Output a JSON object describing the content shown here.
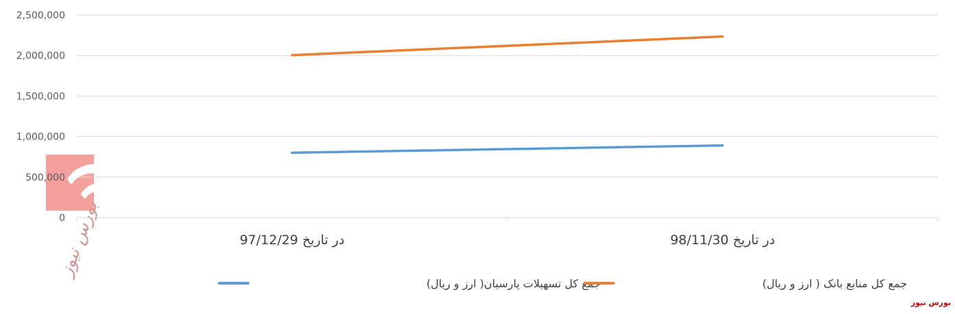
{
  "chart_data": {
    "type": "line",
    "categories": [
      "در تاریخ 97/12/29",
      "در تاریخ 98/11/30"
    ],
    "series": [
      {
        "name": "جمع کل تسهیلات پارسیان( ارز و ریال)",
        "values": [
          800000,
          890000
        ],
        "color": "#5b9bd5"
      },
      {
        "name": "جمع کل منابع بانک ( ارز و ریال)",
        "values": [
          2005000,
          2235000
        ],
        "color": "#ed7d31"
      }
    ],
    "ylim": [
      0,
      2500000
    ],
    "yticks": [
      0,
      500000,
      1000000,
      1500000,
      2000000,
      2500000
    ],
    "ytick_labels": [
      "0",
      "500,000",
      "1,000,000",
      "1,500,000",
      "2,000,000",
      "2,500,000"
    ],
    "grid": true,
    "legend": "bottom"
  },
  "watermark": {
    "text": "بورس نیوز",
    "logo_text": "بورس نیوز",
    "color": "#c00000"
  }
}
